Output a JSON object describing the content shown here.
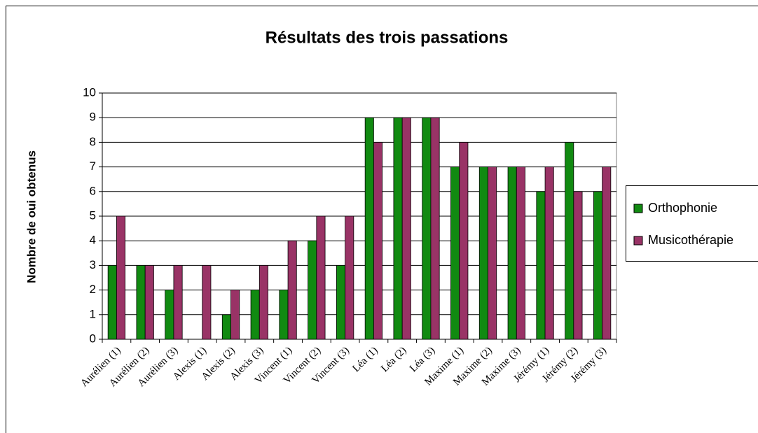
{
  "chart_data": {
    "type": "bar",
    "title": "Résultats des trois passations",
    "y_label": "Nombre de oui obtenus",
    "categories": [
      "Aurélien (1)",
      "Aurélien (2)",
      "Aurélien (3)",
      "Alexis (1)",
      "Alexis (2)",
      "Alexis (3)",
      "Vincent (1)",
      "Vincent (2)",
      "Vincent (3)",
      "Léa (1)",
      "Léa (2)",
      "Léa (3)",
      "Maxime (1)",
      "Maxime (2)",
      "Maxime (3)",
      "Jérémy (1)",
      "Jérémy (2)",
      "Jérémy (3)"
    ],
    "series": [
      {
        "name": "Orthophonie",
        "color": "#118a11",
        "values": [
          3,
          3,
          2,
          0,
          1,
          2,
          2,
          4,
          3,
          9,
          9,
          9,
          7,
          7,
          7,
          6,
          8,
          6
        ]
      },
      {
        "name": "Musicothérapie",
        "color": "#993366",
        "values": [
          5,
          3,
          3,
          3,
          2,
          3,
          4,
          5,
          5,
          8,
          9,
          9,
          8,
          7,
          7,
          7,
          6,
          7
        ]
      }
    ],
    "ylim": [
      0,
      10
    ],
    "yticks": [
      0,
      1,
      2,
      3,
      4,
      5,
      6,
      7,
      8,
      9,
      10
    ],
    "grid": true,
    "legend": "right"
  }
}
